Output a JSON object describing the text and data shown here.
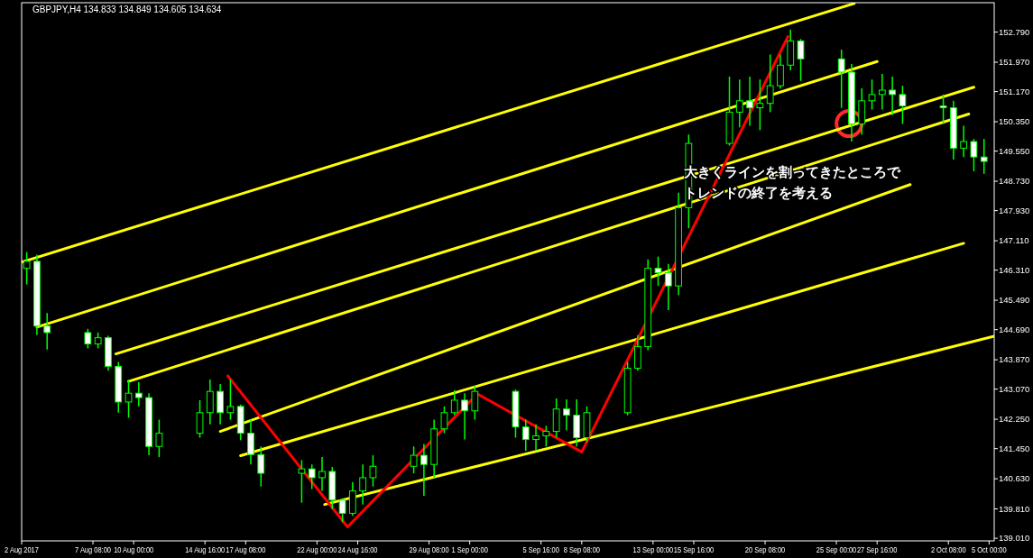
{
  "chart_data": {
    "type": "candlestick",
    "title": "GBPJPY,H4 134.833 134.849 134.605 134.634",
    "annotations": [
      "大きくラインを割ってきたところで",
      "トレンドの終了を考える"
    ],
    "xlim": [
      "2017-08-02T16:00",
      "2017-10-05T08:00"
    ],
    "xticks": [
      {
        "value": "2017-08-02T16:00",
        "label": "2 Aug 2017"
      },
      {
        "value": "2017-08-07T08:00",
        "label": "7 Aug 08:00"
      },
      {
        "value": "2017-08-10T00:00",
        "label": "10 Aug 00:00"
      },
      {
        "value": "2017-08-14T16:00",
        "label": "14 Aug 16:00"
      },
      {
        "value": "2017-08-17T08:00",
        "label": "17 Aug 08:00"
      },
      {
        "value": "2017-08-22T00:00",
        "label": "22 Aug 00:00"
      },
      {
        "value": "2017-08-24T16:00",
        "label": "24 Aug 16:00"
      },
      {
        "value": "2017-08-29T08:00",
        "label": "29 Aug 08:00"
      },
      {
        "value": "2017-09-01T00:00",
        "label": "1 Sep 00:00"
      },
      {
        "value": "2017-09-05T16:00",
        "label": "5 Sep 16:00"
      },
      {
        "value": "2017-09-08T08:00",
        "label": "8 Sep 08:00"
      },
      {
        "value": "2017-09-13T00:00",
        "label": "13 Sep 00:00"
      },
      {
        "value": "2017-09-15T16:00",
        "label": "15 Sep 16:00"
      },
      {
        "value": "2017-09-20T08:00",
        "label": "20 Sep 08:00"
      },
      {
        "value": "2017-09-25T00:00",
        "label": "25 Sep 00:00"
      },
      {
        "value": "2017-09-27T16:00",
        "label": "27 Sep 16:00"
      },
      {
        "value": "2017-10-02T08:00",
        "label": "2 Oct 08:00"
      },
      {
        "value": "2017-10-05T00:00",
        "label": "5 Oct 00:00"
      }
    ],
    "ylim": [
      138.94,
      153.59
    ],
    "yticks": [
      {
        "value": 152.79,
        "label": "152.790"
      },
      {
        "value": 151.97,
        "label": "151.970"
      },
      {
        "value": 151.17,
        "label": "151.170"
      },
      {
        "value": 150.35,
        "label": "150.350"
      },
      {
        "value": 149.55,
        "label": "149.550"
      },
      {
        "value": 148.73,
        "label": "148.730"
      },
      {
        "value": 147.93,
        "label": "147.930"
      },
      {
        "value": 147.11,
        "label": "147.110"
      },
      {
        "value": 146.31,
        "label": "146.310"
      },
      {
        "value": 145.49,
        "label": "145.490"
      },
      {
        "value": 144.69,
        "label": "144.690"
      },
      {
        "value": 143.87,
        "label": "143.870"
      },
      {
        "value": 143.07,
        "label": "143.070"
      },
      {
        "value": 142.25,
        "label": "142.250"
      },
      {
        "value": 141.45,
        "label": "141.450"
      },
      {
        "value": 140.63,
        "label": "140.630"
      },
      {
        "value": 139.81,
        "label": "139.810"
      },
      {
        "value": 139.01,
        "label": "139.010"
      }
    ],
    "series": [
      {
        "type": "line",
        "color": "#ffff00",
        "x": [
          "2017-08-02T16:00",
          "2017-09-26T04:00"
        ],
        "values": [
          146.53,
          153.57
        ]
      },
      {
        "type": "line",
        "color": "#ffff00",
        "x": [
          "2017-08-03T16:00",
          "2017-09-27T16:00"
        ],
        "values": [
          144.76,
          151.99
        ]
      },
      {
        "type": "line",
        "color": "#ffff00",
        "x": [
          "2017-08-08T20:00",
          "2017-10-04T00:00"
        ],
        "values": [
          144.03,
          151.29
        ]
      },
      {
        "type": "line",
        "color": "#ffff00",
        "x": [
          "2017-08-09T16:00",
          "2017-10-03T16:00"
        ],
        "values": [
          143.28,
          150.56
        ]
      },
      {
        "type": "line",
        "color": "#ffff00",
        "x": [
          "2017-08-15T16:00",
          "2017-09-29T20:00"
        ],
        "values": [
          141.92,
          148.64
        ]
      },
      {
        "type": "line",
        "color": "#ffff00",
        "x": [
          "2017-08-17T00:00",
          "2017-10-03T08:00"
        ],
        "values": [
          141.26,
          147.04
        ]
      },
      {
        "type": "line",
        "color": "#ffff00",
        "x": [
          "2017-08-22T12:00",
          "2017-10-05T08:00"
        ],
        "values": [
          139.93,
          144.51
        ]
      },
      {
        "type": "line",
        "color": "#ff0000",
        "x": [
          "2017-08-16T04:00",
          "2017-08-24T00:00",
          "2017-09-01T12:00",
          "2017-09-08T08:00",
          "2017-09-21T20:00"
        ],
        "values": [
          143.43,
          139.32,
          142.94,
          141.36,
          152.67
        ]
      },
      {
        "color": "#00ff00",
        "x": [
          "2017-08-03T00:00",
          "2017-08-03T16:00",
          "2017-08-04T08:00",
          "2017-08-07T00:00",
          "2017-08-07T16:00",
          "2017-08-08T08:00",
          "2017-08-09T00:00",
          "2017-08-09T16:00",
          "2017-08-10T08:00",
          "2017-08-11T00:00",
          "2017-08-11T16:00",
          "2017-08-14T08:00",
          "2017-08-15T00:00",
          "2017-08-15T16:00",
          "2017-08-16T08:00",
          "2017-08-17T00:00",
          "2017-08-17T16:00",
          "2017-08-18T08:00",
          "2017-08-21T00:00",
          "2017-08-21T16:00",
          "2017-08-22T08:00",
          "2017-08-23T00:00",
          "2017-08-23T16:00",
          "2017-08-24T08:00",
          "2017-08-25T00:00",
          "2017-08-25T16:00",
          "2017-08-28T08:00",
          "2017-08-29T00:00",
          "2017-08-29T16:00",
          "2017-08-30T08:00",
          "2017-08-31T00:00",
          "2017-08-31T16:00",
          "2017-09-01T08:00",
          "2017-09-04T00:00",
          "2017-09-04T16:00",
          "2017-09-05T08:00",
          "2017-09-06T00:00",
          "2017-09-06T16:00",
          "2017-09-07T08:00",
          "2017-09-08T00:00",
          "2017-09-08T16:00",
          "2017-09-11T08:00",
          "2017-09-12T00:00",
          "2017-09-12T16:00",
          "2017-09-13T08:00",
          "2017-09-14T00:00",
          "2017-09-14T16:00",
          "2017-09-15T08:00",
          "2017-09-18T00:00",
          "2017-09-18T16:00",
          "2017-09-19T08:00",
          "2017-09-20T00:00",
          "2017-09-20T16:00",
          "2017-09-21T08:00",
          "2017-09-22T00:00",
          "2017-09-22T16:00",
          "2017-09-25T08:00",
          "2017-09-26T00:00",
          "2017-09-26T16:00",
          "2017-09-27T08:00",
          "2017-09-28T00:00",
          "2017-09-28T16:00",
          "2017-09-29T08:00",
          "2017-10-02T00:00",
          "2017-10-02T16:00",
          "2017-10-03T08:00",
          "2017-10-04T00:00",
          "2017-10-04T16:00"
        ],
        "ohlc": [
          [
            146.36,
            146.8,
            145.92,
            146.55
          ],
          [
            146.55,
            146.73,
            144.54,
            144.79
          ],
          [
            144.79,
            145.14,
            144.15,
            144.61
          ],
          [
            144.61,
            144.71,
            144.18,
            144.3
          ],
          [
            144.3,
            144.61,
            144.18,
            144.47
          ],
          [
            144.47,
            144.52,
            143.57,
            143.69
          ],
          [
            143.69,
            143.81,
            142.43,
            142.72
          ],
          [
            142.72,
            143.33,
            142.29,
            142.96
          ],
          [
            142.96,
            143.26,
            142.6,
            142.84
          ],
          [
            142.84,
            142.96,
            141.27,
            141.51
          ],
          [
            141.51,
            142.24,
            141.22,
            141.87
          ],
          [
            141.87,
            142.77,
            141.75,
            142.43
          ],
          [
            142.43,
            143.33,
            142.11,
            143.01
          ],
          [
            143.01,
            143.21,
            142.11,
            142.43
          ],
          [
            142.43,
            143.33,
            142.24,
            142.6
          ],
          [
            142.6,
            142.65,
            141.68,
            141.87
          ],
          [
            141.87,
            142.24,
            141.02,
            141.29
          ],
          [
            141.29,
            141.51,
            140.42,
            140.78
          ],
          [
            140.78,
            141.14,
            139.98,
            140.9
          ],
          [
            140.9,
            141.02,
            140.35,
            140.66
          ],
          [
            140.66,
            141.22,
            140.3,
            140.83
          ],
          [
            140.83,
            140.95,
            139.81,
            140.05
          ],
          [
            140.05,
            140.1,
            139.45,
            139.69
          ],
          [
            139.69,
            140.54,
            139.62,
            140.3
          ],
          [
            140.3,
            141.02,
            139.93,
            140.66
          ],
          [
            140.66,
            141.27,
            140.42,
            140.97
          ],
          [
            140.97,
            141.51,
            140.78,
            141.27
          ],
          [
            141.27,
            141.58,
            140.17,
            141.02
          ],
          [
            141.02,
            142.24,
            140.66,
            141.99
          ],
          [
            141.99,
            142.6,
            141.87,
            142.43
          ],
          [
            142.43,
            143.04,
            142.36,
            142.77
          ],
          [
            142.77,
            142.96,
            141.7,
            142.48
          ],
          [
            142.48,
            143.16,
            142.24,
            143.01
          ],
          [
            143.01,
            143.06,
            141.75,
            142.04
          ],
          [
            142.04,
            142.24,
            141.39,
            141.7
          ],
          [
            141.7,
            142.11,
            141.39,
            141.8
          ],
          [
            141.8,
            142.07,
            141.51,
            141.92
          ],
          [
            141.92,
            142.82,
            141.75,
            142.53
          ],
          [
            142.53,
            142.79,
            141.95,
            142.36
          ],
          [
            142.36,
            142.79,
            141.51,
            141.75
          ],
          [
            141.75,
            142.6,
            141.63,
            142.43
          ],
          [
            142.43,
            143.81,
            142.36,
            143.64
          ],
          [
            143.64,
            144.54,
            143.57,
            144.23
          ],
          [
            144.23,
            146.6,
            144.13,
            146.36
          ],
          [
            146.36,
            146.68,
            145.88,
            146.24
          ],
          [
            146.24,
            146.48,
            145.22,
            145.88
          ],
          [
            145.88,
            148.42,
            145.63,
            148.01
          ],
          [
            148.01,
            150.0,
            147.45,
            149.76
          ],
          [
            149.76,
            151.58,
            149.7,
            150.61
          ],
          [
            150.61,
            151.5,
            150.2,
            150.92
          ],
          [
            150.92,
            151.58,
            150.24,
            150.73
          ],
          [
            150.73,
            151.5,
            150.12,
            150.85
          ],
          [
            150.85,
            152.18,
            150.61,
            151.33
          ],
          [
            151.33,
            152.18,
            151.25,
            151.89
          ],
          [
            151.89,
            152.86,
            151.75,
            152.55
          ],
          [
            152.55,
            152.6,
            151.46,
            152.06
          ],
          [
            152.06,
            152.31,
            150.73,
            151.7
          ],
          [
            151.7,
            151.92,
            149.81,
            150.29
          ],
          [
            150.29,
            151.26,
            150.0,
            150.92
          ],
          [
            150.92,
            151.5,
            150.68,
            151.09
          ],
          [
            151.09,
            151.65,
            150.68,
            151.21
          ],
          [
            151.21,
            151.58,
            150.53,
            151.09
          ],
          [
            151.09,
            151.33,
            150.29,
            150.78
          ],
          [
            150.78,
            151.09,
            150.29,
            150.73
          ],
          [
            150.73,
            150.92,
            149.32,
            149.63
          ],
          [
            149.63,
            150.24,
            149.39,
            149.81
          ],
          [
            149.81,
            149.88,
            149.0,
            149.39
          ],
          [
            149.39,
            149.88,
            148.93,
            149.27
          ]
        ]
      }
    ]
  }
}
